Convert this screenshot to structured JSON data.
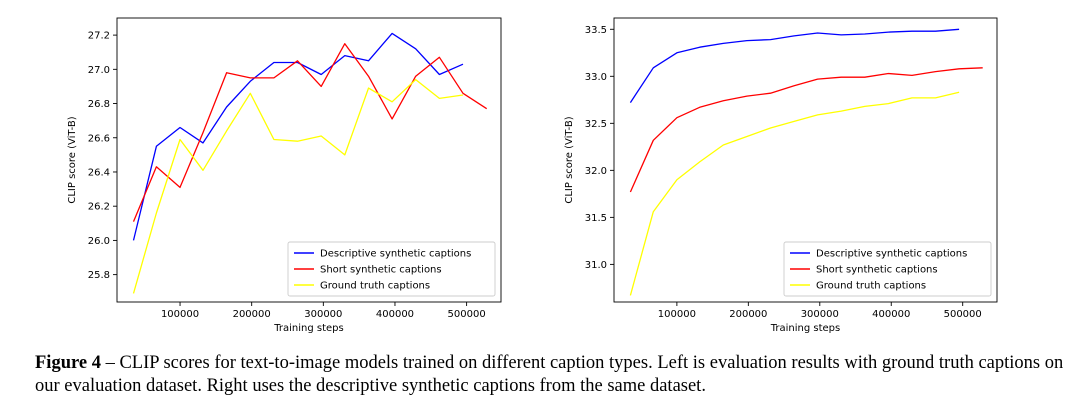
{
  "chart_data": [
    {
      "type": "line",
      "title": "",
      "xlabel": "Training steps",
      "ylabel": "CLIP score (ViT-B)",
      "xlim": [
        12000,
        548000
      ],
      "ylim": [
        25.64,
        27.3
      ],
      "xticks": [
        100000,
        200000,
        300000,
        400000,
        500000
      ],
      "xtick_labels": [
        "100000",
        "200000",
        "300000",
        "400000",
        "500000"
      ],
      "yticks": [
        25.8,
        26.0,
        26.2,
        26.4,
        26.6,
        26.8,
        27.0,
        27.2
      ],
      "ytick_labels": [
        "25.8",
        "26.0",
        "26.2",
        "26.4",
        "26.6",
        "26.8",
        "27.0",
        "27.2"
      ],
      "grid": false,
      "legend_position": "lower-right",
      "series": [
        {
          "name": "Descriptive synthetic captions",
          "color": "#0000ff",
          "x": [
            35000,
            67000,
            100000,
            132000,
            165000,
            198000,
            231000,
            264000,
            297000,
            330000,
            363000,
            396000,
            429000,
            462000,
            495000
          ],
          "y": [
            26.0,
            26.55,
            26.66,
            26.57,
            26.78,
            26.93,
            27.04,
            27.04,
            26.97,
            27.08,
            27.05,
            27.21,
            27.12,
            26.97,
            27.03
          ]
        },
        {
          "name": "Short synthetic captions",
          "color": "#ff0000",
          "x": [
            35000,
            67000,
            100000,
            132000,
            165000,
            198000,
            231000,
            264000,
            297000,
            330000,
            363000,
            396000,
            429000,
            462000,
            495000,
            528000
          ],
          "y": [
            26.11,
            26.43,
            26.31,
            26.63,
            26.98,
            26.95,
            26.95,
            27.05,
            26.9,
            27.15,
            26.96,
            26.71,
            26.96,
            27.07,
            26.86,
            26.77
          ]
        },
        {
          "name": "Ground truth captions",
          "color": "#ffff00",
          "x": [
            35000,
            67000,
            100000,
            132000,
            165000,
            198000,
            231000,
            264000,
            297000,
            330000,
            363000,
            396000,
            429000,
            462000,
            495000
          ],
          "y": [
            25.69,
            26.16,
            26.59,
            26.41,
            26.64,
            26.86,
            26.59,
            26.58,
            26.61,
            26.5,
            26.89,
            26.81,
            26.94,
            26.83,
            26.85
          ]
        }
      ]
    },
    {
      "type": "line",
      "title": "",
      "xlabel": "Training steps",
      "ylabel": "CLIP score (ViT-B)",
      "xlim": [
        12000,
        548000
      ],
      "ylim": [
        30.6,
        33.62
      ],
      "xticks": [
        100000,
        200000,
        300000,
        400000,
        500000
      ],
      "xtick_labels": [
        "100000",
        "200000",
        "300000",
        "400000",
        "500000"
      ],
      "yticks": [
        31.0,
        31.5,
        32.0,
        32.5,
        33.0,
        33.5
      ],
      "ytick_labels": [
        "31.0",
        "31.5",
        "32.0",
        "32.5",
        "33.0",
        "33.5"
      ],
      "grid": false,
      "legend_position": "lower-right",
      "series": [
        {
          "name": "Descriptive synthetic captions",
          "color": "#0000ff",
          "x": [
            35000,
            67000,
            100000,
            132000,
            165000,
            198000,
            231000,
            264000,
            297000,
            330000,
            363000,
            396000,
            429000,
            462000,
            495000
          ],
          "y": [
            32.72,
            33.09,
            33.25,
            33.31,
            33.35,
            33.38,
            33.39,
            33.43,
            33.46,
            33.44,
            33.45,
            33.47,
            33.48,
            33.48,
            33.5
          ]
        },
        {
          "name": "Short synthetic captions",
          "color": "#ff0000",
          "x": [
            35000,
            67000,
            100000,
            132000,
            165000,
            198000,
            231000,
            264000,
            297000,
            330000,
            363000,
            396000,
            429000,
            462000,
            495000,
            528000
          ],
          "y": [
            31.77,
            32.32,
            32.56,
            32.67,
            32.74,
            32.79,
            32.82,
            32.9,
            32.97,
            32.99,
            32.99,
            33.03,
            33.01,
            33.05,
            33.08,
            33.09
          ]
        },
        {
          "name": "Ground truth captions",
          "color": "#ffff00",
          "x": [
            35000,
            67000,
            100000,
            132000,
            165000,
            198000,
            231000,
            264000,
            297000,
            330000,
            363000,
            396000,
            429000,
            462000,
            495000
          ],
          "y": [
            30.67,
            31.56,
            31.9,
            32.09,
            32.27,
            32.36,
            32.45,
            32.52,
            32.59,
            32.63,
            32.68,
            32.71,
            32.77,
            32.77,
            32.83
          ]
        }
      ]
    }
  ],
  "caption": {
    "label": "Figure 4",
    "text": " – CLIP scores for text-to-image models trained on different caption types. Left is evaluation results with ground truth captions on our evaluation dataset. Right uses the descriptive synthetic captions from the same dataset."
  }
}
